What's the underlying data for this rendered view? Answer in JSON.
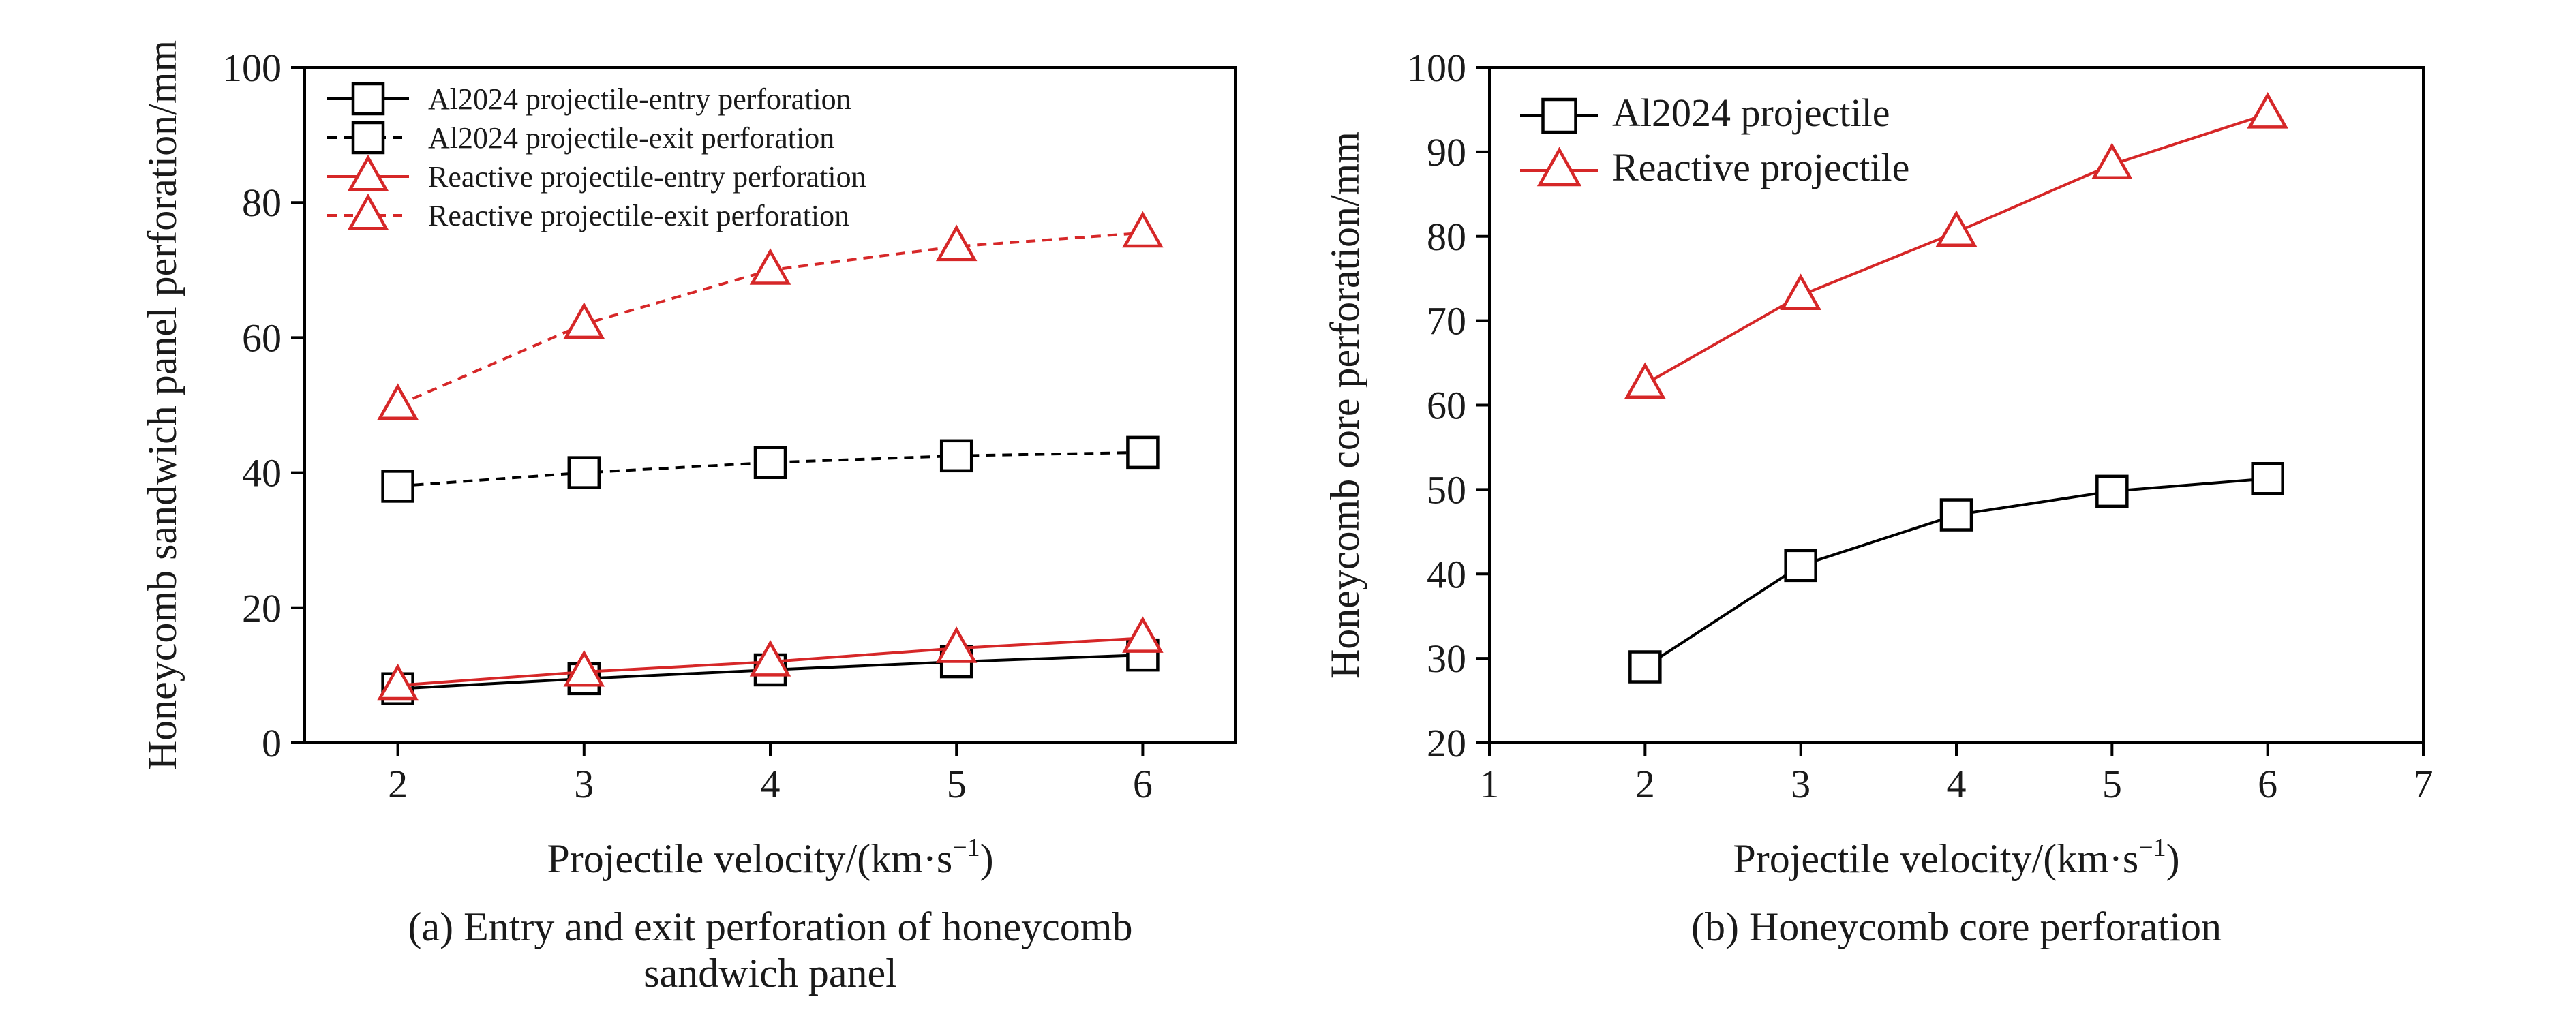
{
  "colors": {
    "black": "#000000",
    "red": "#d62728"
  },
  "chart_data": [
    {
      "type": "line",
      "caption": [
        "(a) Entry and exit perforation of honeycomb",
        "sandwich panel"
      ],
      "xlabel": "Projectile velocity/(km·s",
      "xlabel_sup": "−1",
      "xlabel_end": ")",
      "ylabel": "Honeycomb sandwich panel perforation/mm",
      "xlim": [
        1.5,
        6.5
      ],
      "ylim": [
        0,
        100
      ],
      "xticks": [
        2,
        3,
        4,
        5,
        6
      ],
      "yticks": [
        0,
        20,
        40,
        60,
        80,
        100
      ],
      "legend_position": "top-left",
      "x": [
        2,
        3,
        4,
        5,
        6
      ],
      "series": [
        {
          "name": "Al2024 projectile-entry perforation",
          "values": [
            8,
            9.5,
            10.8,
            12,
            13
          ],
          "color": "black",
          "dash": "solid",
          "marker": "square"
        },
        {
          "name": "Al2024 projectile-exit perforation",
          "values": [
            38,
            40,
            41.5,
            42.5,
            43
          ],
          "color": "black",
          "dash": "dashed",
          "marker": "square"
        },
        {
          "name": "Reactive projectile-entry perforation",
          "values": [
            8.5,
            10.5,
            12,
            14,
            15.5
          ],
          "color": "red",
          "dash": "solid",
          "marker": "triangle"
        },
        {
          "name": "Reactive projectile-exit perforation",
          "values": [
            50,
            62,
            70,
            73.5,
            75.5
          ],
          "color": "red",
          "dash": "dashed",
          "marker": "triangle"
        }
      ]
    },
    {
      "type": "line",
      "caption": [
        "(b) Honeycomb core perforation"
      ],
      "xlabel": "Projectile velocity/(km·s",
      "xlabel_sup": "−1",
      "xlabel_end": ")",
      "ylabel": "Honeycomb core perforation/mm",
      "xlim": [
        1,
        7
      ],
      "ylim": [
        20,
        100
      ],
      "xticks": [
        1,
        2,
        3,
        4,
        5,
        6,
        7
      ],
      "yticks": [
        20,
        30,
        40,
        50,
        60,
        70,
        80,
        90,
        100
      ],
      "legend_position": "top-left",
      "x": [
        2,
        3,
        4,
        5,
        6
      ],
      "series": [
        {
          "name": "Al2024 projectile",
          "values": [
            29,
            41,
            47,
            49.8,
            51.3
          ],
          "color": "black",
          "dash": "solid",
          "marker": "square"
        },
        {
          "name": "Reactive projectile",
          "values": [
            62.5,
            73,
            80.5,
            88.5,
            94.5
          ],
          "color": "red",
          "dash": "solid",
          "marker": "triangle"
        }
      ]
    }
  ]
}
